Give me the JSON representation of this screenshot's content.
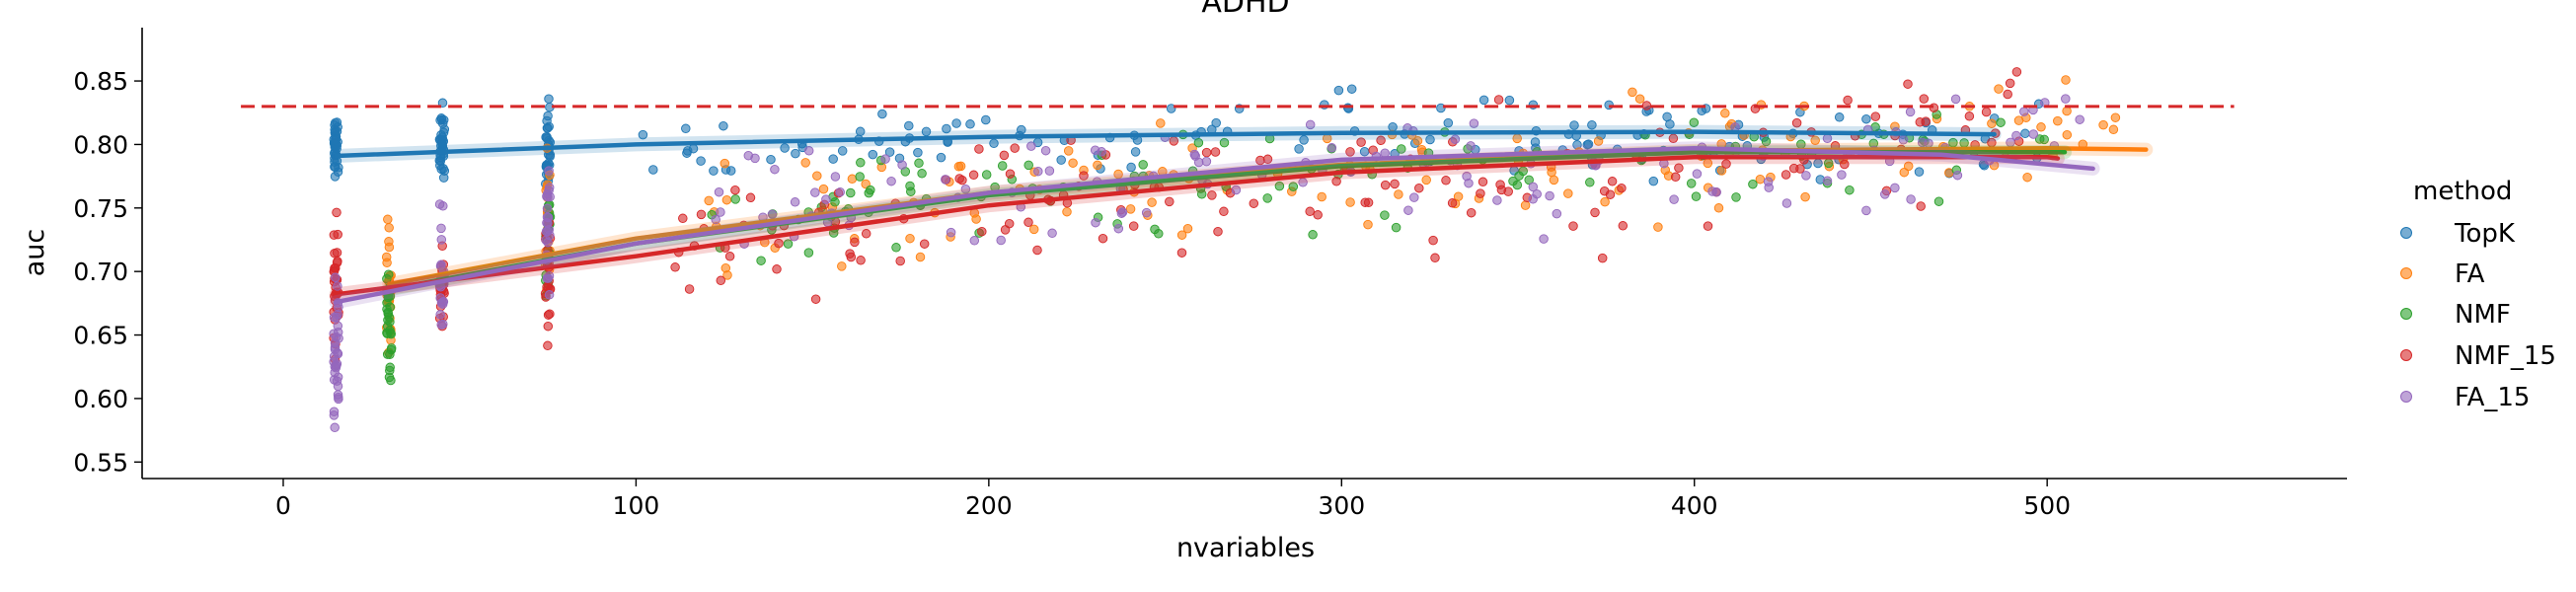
{
  "chart_data": {
    "type": "scatter",
    "title": "ADHD",
    "xlabel": "nvariables",
    "ylabel": "auc",
    "xlim": [
      -40,
      585
    ],
    "ylim": [
      0.537,
      0.892
    ],
    "xticks": [
      0,
      100,
      200,
      300,
      400,
      500
    ],
    "yticks": [
      0.55,
      0.6,
      0.65,
      0.7,
      0.75,
      0.8,
      0.85
    ],
    "grid": false,
    "legend": {
      "title": "method",
      "placement": "right"
    },
    "reference_line": {
      "y": 0.83,
      "x_range": [
        -12,
        553
      ],
      "color": "#d62728",
      "style": "dashed"
    },
    "series": [
      {
        "name": "TopK",
        "color": "#1f77b4",
        "columns": [
          {
            "x": 15,
            "center": 0.8,
            "spread": 0.04,
            "n": 35
          },
          {
            "x": 45,
            "center": 0.8,
            "spread": 0.05,
            "n": 35
          },
          {
            "x": 75,
            "center": 0.8,
            "spread": 0.05,
            "n": 30
          }
        ],
        "band": [
          {
            "x": 100,
            "center": 0.79,
            "spread": 0.04
          },
          {
            "x": 200,
            "center": 0.805,
            "spread": 0.04
          },
          {
            "x": 300,
            "center": 0.81,
            "spread": 0.045
          },
          {
            "x": 400,
            "center": 0.805,
            "spread": 0.05
          },
          {
            "x": 500,
            "center": 0.8,
            "spread": 0.045
          }
        ],
        "band_count": 140,
        "fit": [
          [
            15,
            0.791
          ],
          [
            100,
            0.8
          ],
          [
            200,
            0.806
          ],
          [
            300,
            0.809
          ],
          [
            400,
            0.81
          ],
          [
            485,
            0.808
          ]
        ]
      },
      {
        "name": "FA",
        "color": "#ff7f0e",
        "columns": [
          {
            "x": 30,
            "center": 0.69,
            "spread": 0.08,
            "n": 25
          },
          {
            "x": 75,
            "center": 0.74,
            "spread": 0.07,
            "n": 25
          }
        ],
        "band": [
          {
            "x": 120,
            "center": 0.74,
            "spread": 0.07
          },
          {
            "x": 220,
            "center": 0.77,
            "spread": 0.07
          },
          {
            "x": 320,
            "center": 0.78,
            "spread": 0.07
          },
          {
            "x": 420,
            "center": 0.79,
            "spread": 0.06
          },
          {
            "x": 520,
            "center": 0.82,
            "spread": 0.05
          }
        ],
        "band_count": 140,
        "fit": [
          [
            30,
            0.69
          ],
          [
            100,
            0.726
          ],
          [
            200,
            0.762
          ],
          [
            300,
            0.784
          ],
          [
            400,
            0.795
          ],
          [
            500,
            0.797
          ],
          [
            528,
            0.796
          ]
        ]
      },
      {
        "name": "NMF",
        "color": "#2ca02c",
        "columns": [
          {
            "x": 30,
            "center": 0.66,
            "spread": 0.07,
            "n": 30
          },
          {
            "x": 75,
            "center": 0.73,
            "spread": 0.07,
            "n": 25
          }
        ],
        "band": [
          {
            "x": 120,
            "center": 0.74,
            "spread": 0.06
          },
          {
            "x": 220,
            "center": 0.765,
            "spread": 0.065
          },
          {
            "x": 320,
            "center": 0.775,
            "spread": 0.06
          },
          {
            "x": 420,
            "center": 0.785,
            "spread": 0.06
          },
          {
            "x": 500,
            "center": 0.81,
            "spread": 0.05
          }
        ],
        "band_count": 120,
        "fit": [
          [
            30,
            0.686
          ],
          [
            100,
            0.722
          ],
          [
            200,
            0.76
          ],
          [
            300,
            0.783
          ],
          [
            400,
            0.794
          ],
          [
            505,
            0.794
          ]
        ]
      },
      {
        "name": "NMF_15",
        "color": "#d62728",
        "columns": [
          {
            "x": 15,
            "center": 0.69,
            "spread": 0.07,
            "n": 30
          },
          {
            "x": 45,
            "center": 0.68,
            "spread": 0.07,
            "n": 25
          },
          {
            "x": 75,
            "center": 0.7,
            "spread": 0.07,
            "n": 20
          }
        ],
        "band": [
          {
            "x": 110,
            "center": 0.72,
            "spread": 0.08
          },
          {
            "x": 210,
            "center": 0.76,
            "spread": 0.08
          },
          {
            "x": 310,
            "center": 0.77,
            "spread": 0.08
          },
          {
            "x": 410,
            "center": 0.78,
            "spread": 0.07
          },
          {
            "x": 495,
            "center": 0.82,
            "spread": 0.06
          }
        ],
        "band_count": 150,
        "fit": [
          [
            15,
            0.682
          ],
          [
            100,
            0.712
          ],
          [
            200,
            0.752
          ],
          [
            300,
            0.778
          ],
          [
            400,
            0.79
          ],
          [
            500,
            0.79
          ],
          [
            503,
            0.789
          ]
        ]
      },
      {
        "name": "FA_15",
        "color": "#9467bd",
        "columns": [
          {
            "x": 15,
            "center": 0.64,
            "spread": 0.08,
            "n": 35
          },
          {
            "x": 45,
            "center": 0.69,
            "spread": 0.07,
            "n": 25
          },
          {
            "x": 75,
            "center": 0.74,
            "spread": 0.07,
            "n": 25
          }
        ],
        "band": [
          {
            "x": 120,
            "center": 0.75,
            "spread": 0.07
          },
          {
            "x": 220,
            "center": 0.77,
            "spread": 0.07
          },
          {
            "x": 320,
            "center": 0.78,
            "spread": 0.06
          },
          {
            "x": 420,
            "center": 0.77,
            "spread": 0.06
          },
          {
            "x": 510,
            "center": 0.82,
            "spread": 0.05
          }
        ],
        "band_count": 130,
        "fit": [
          [
            15,
            0.676
          ],
          [
            100,
            0.722
          ],
          [
            200,
            0.762
          ],
          [
            300,
            0.788
          ],
          [
            400,
            0.797
          ],
          [
            470,
            0.792
          ],
          [
            513,
            0.781
          ]
        ]
      }
    ]
  }
}
